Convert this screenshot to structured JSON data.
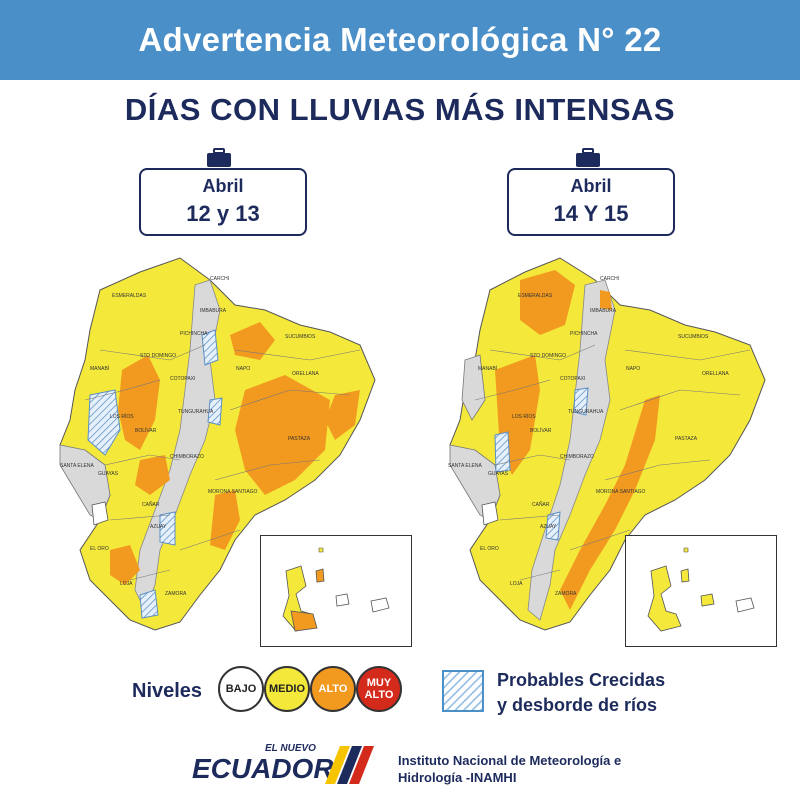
{
  "header": {
    "title": "Advertencia Meteorológica N° 22"
  },
  "subtitle": {
    "prefix": "DÍAS CON LLUVIAS ",
    "emphasis": "MÁS INTENSAS"
  },
  "maps": [
    {
      "month": "Abril",
      "days": "12 y 13",
      "province_labels": [
        "ESMERALDAS",
        "CARCHI",
        "IMBABURA",
        "PICHINCHA",
        "SUCUMBIOS",
        "STO DOMINGO",
        "MANABÍ",
        "NAPO",
        "ORELLANA",
        "COTOPAXI",
        "LOS RÍOS",
        "TUNGURAHUA",
        "BOLÍVAR",
        "PASTAZA",
        "CHIMBORAZO",
        "SANTA ELENA",
        "GUAYAS",
        "MORONA SANTIAGO",
        "CAÑAR",
        "AZUAY",
        "EL ORO",
        "LOJA",
        "ZAMORA"
      ]
    },
    {
      "month": "Abril",
      "days": "14 Y 15",
      "province_labels": [
        "ESMERALDAS",
        "CARCHI",
        "IMBABURA",
        "PICHINCHA",
        "SUCUMBIOS",
        "STO DOMINGO",
        "MANABÍ",
        "NAPO",
        "ORELLANA",
        "COTOPAXI",
        "LOS RÍOS",
        "TUNGURAHUA",
        "BOLÍVAR",
        "PASTAZA",
        "CHIMBORAZO",
        "SANTA ELENA",
        "GUAYAS",
        "MORONA SANTIAGO",
        "CAÑAR",
        "AZUAY",
        "EL ORO",
        "LOJA",
        "ZAMORA"
      ]
    }
  ],
  "legend": {
    "niveles_label": "Niveles",
    "levels": [
      {
        "label": "BAJO",
        "color": "#ffffff",
        "text_color": "#222222"
      },
      {
        "label": "MEDIO",
        "color": "#f4e93b",
        "text_color": "#222222"
      },
      {
        "label": "ALTO",
        "color": "#f29a1f",
        "text_color": "#ffffff"
      },
      {
        "label": "MUY ALTO",
        "color": "#d42a1c",
        "text_color": "#ffffff"
      }
    ],
    "crecidas_line1": "Probables Crecidas",
    "crecidas_line2": "y desborde de ríos"
  },
  "footer": {
    "logo_top": "EL NUEVO",
    "logo_main": "ECUADOR",
    "institute_line1": "Instituto Nacional de Meteorología e",
    "institute_line2": "Hidrología -INAMHI"
  },
  "colors": {
    "banner": "#4a8fc8",
    "navy": "#1d2a5c",
    "medio": "#f4e93b",
    "alto": "#f29a1f",
    "sierra_gray": "#d9d9d9",
    "flood_blue": "#5b8fc4"
  }
}
